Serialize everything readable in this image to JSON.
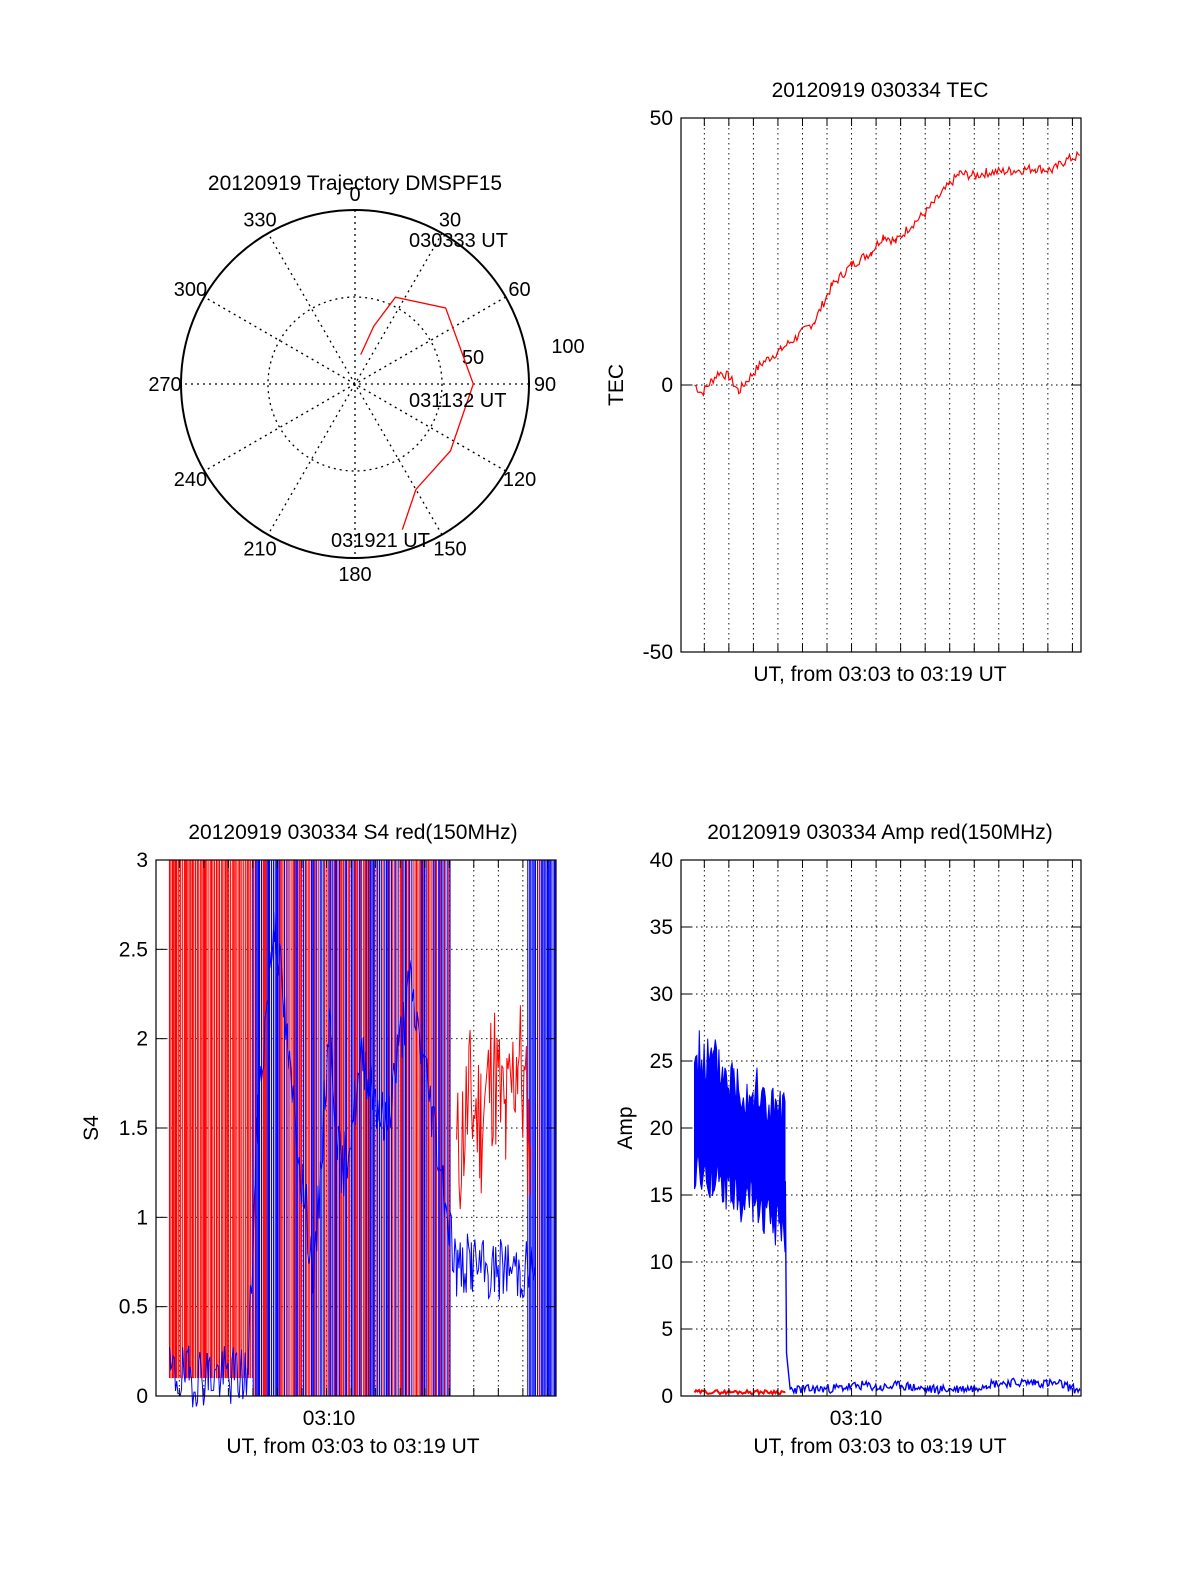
{
  "chart_data": [
    {
      "type": "polar",
      "title": "20120919 Trajectory DMSPF15",
      "angle_labels": [
        "0",
        "30",
        "60",
        "90",
        "120",
        "150",
        "180",
        "210",
        "240",
        "270",
        "300",
        "330"
      ],
      "radius_labels": [
        "50",
        "100"
      ],
      "rmax": 100,
      "trajectory": {
        "color": "#ff0000",
        "points": [
          [
            11,
            17.2
          ],
          [
            18,
            35
          ],
          [
            25,
            55
          ],
          [
            50,
            68
          ],
          [
            90,
            68
          ],
          [
            125,
            67
          ],
          [
            150,
            70
          ],
          [
            162,
            88
          ]
        ]
      },
      "annotations": [
        {
          "text": "030333 UT",
          "angle": 11,
          "r": 17.2
        },
        {
          "text": "031132 UT",
          "angle": 101,
          "r": 59
        },
        {
          "text": "031921 UT",
          "angle": 162,
          "r": 88
        }
      ]
    },
    {
      "type": "line",
      "title": "20120919 030334 TEC",
      "xlabel": "UT, from 03:03 to 03:19 UT",
      "ylabel": "TEC",
      "xlim": [
        3.05,
        19.35
      ],
      "ylim": [
        -50,
        50
      ],
      "yticks": [
        -50,
        0,
        50
      ],
      "grid": true,
      "series": [
        {
          "color": "#ff0000",
          "x": [
            3.6,
            3.9,
            4.3,
            4.6,
            5.0,
            5.4,
            5.7,
            6.3,
            7.1,
            7.8,
            8.5,
            9.2,
            10.0,
            10.8,
            11.3,
            11.8,
            12.4,
            13.0,
            13.7,
            14.4,
            15.0,
            15.5,
            16.5,
            17.5,
            18.2,
            18.7,
            19.3
          ],
          "y": [
            0.0,
            -1.5,
            0.8,
            2.4,
            1.6,
            -1.2,
            0.6,
            3.9,
            6.6,
            9.1,
            12.0,
            18.6,
            22.5,
            24.9,
            28.0,
            26.8,
            29.8,
            32.2,
            36.0,
            39.6,
            39.2,
            39.8,
            40.1,
            40.6,
            40.2,
            42.0,
            43.0
          ]
        }
      ]
    },
    {
      "type": "line",
      "title": "20120919 030334 S4 red(150MHz)",
      "xlabel": "UT, from 03:03 to 03:19 UT",
      "ylabel": "S4",
      "xlim": [
        3.05,
        19.35
      ],
      "ylim": [
        0,
        3
      ],
      "yticks": [
        0,
        0.5,
        1,
        1.5,
        2,
        2.5,
        3
      ],
      "xticks": [
        {
          "value": 10.25,
          "label": "03:10"
        }
      ],
      "grid": true,
      "series": [
        {
          "color": "#ff0000",
          "x": [
            15.3,
            15.8,
            16.3,
            16.8,
            17.3,
            17.8,
            18.3
          ],
          "y": [
            1.3,
            1.65,
            1.55,
            1.85,
            1.5,
            1.95,
            1.4
          ]
        },
        {
          "color": "#0000ff",
          "x": [
            3.6,
            4.4,
            5.2,
            6.0,
            6.8,
            7.2,
            7.9,
            8.5,
            9.5,
            10.1,
            10.6,
            11.5,
            12.4,
            13.4,
            14.3,
            15.3,
            15.9,
            16.6,
            17.2,
            17.9,
            18.5
          ],
          "y": [
            0.11,
            0.11,
            0.12,
            0.11,
            0.12,
            1.6,
            2.7,
            1.8,
            0.65,
            2.1,
            1.2,
            1.9,
            1.5,
            2.3,
            1.6,
            0.7,
            0.75,
            0.68,
            0.72,
            0.7,
            0.72
          ]
        }
      ]
    },
    {
      "type": "line",
      "title": "20120919 030334 Amp red(150MHz)",
      "xlabel": "UT, from 03:03 to 03:19 UT",
      "ylabel": "Amp",
      "xlim": [
        3.05,
        19.35
      ],
      "ylim": [
        0,
        40
      ],
      "yticks": [
        0,
        5,
        10,
        15,
        20,
        25,
        30,
        35,
        40
      ],
      "xticks": [
        {
          "value": 10.25,
          "label": "03:10"
        }
      ],
      "grid": true,
      "series": [
        {
          "color": "#0000ff",
          "x": [
            3.6,
            4.4,
            5.2,
            6.0,
            6.7,
            7.3,
            7.35,
            7.5,
            8.5,
            9.5,
            10.5,
            11.2,
            12.0,
            13.0,
            14.0,
            15.0,
            15.5,
            16.5,
            17.5,
            18.5,
            19.3
          ],
          "y": [
            21,
            20.5,
            19.2,
            18.4,
            17.2,
            16.3,
            3.0,
            0.5,
            0.5,
            0.6,
            0.8,
            0.6,
            0.8,
            0.5,
            0.5,
            0.6,
            0.9,
            1.0,
            1.0,
            0.9,
            0.4
          ]
        },
        {
          "color": "#ff0000",
          "x": [
            3.6,
            7.3
          ],
          "y": [
            0.3,
            0.3
          ]
        }
      ]
    }
  ]
}
